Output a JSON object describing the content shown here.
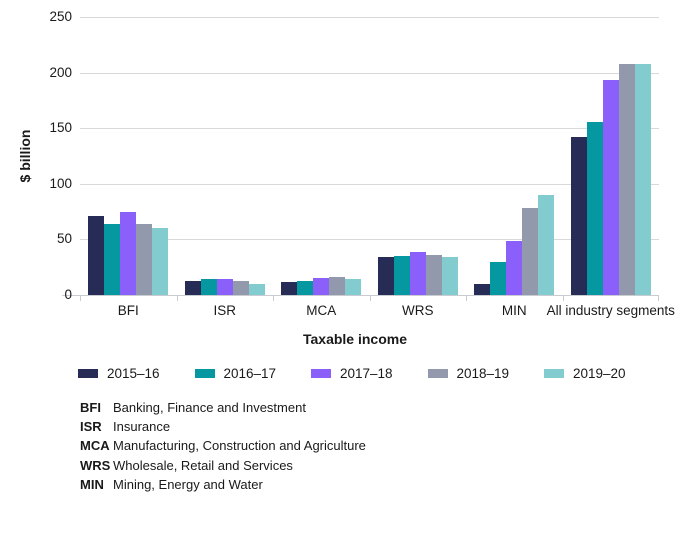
{
  "chart_data": {
    "type": "bar",
    "title": "",
    "ylabel": "$ billion",
    "xlabel": "Taxable income",
    "ylim": [
      0,
      250
    ],
    "yticks": [
      0,
      50,
      100,
      150,
      200,
      250
    ],
    "grid": true,
    "legend_position": "bottom",
    "categories": [
      "BFI",
      "ISR",
      "MCA",
      "WRS",
      "MIN",
      "All industry segments"
    ],
    "series": [
      {
        "name": "2015–16",
        "color": "#262C55",
        "values": [
          71,
          13,
          12,
          34,
          10,
          142
        ]
      },
      {
        "name": "2016–17",
        "color": "#0598A1",
        "values": [
          64,
          14,
          13,
          35,
          30,
          156
        ]
      },
      {
        "name": "2017–18",
        "color": "#8A5FFA",
        "values": [
          75,
          14,
          15,
          39,
          49,
          193
        ]
      },
      {
        "name": "2018–19",
        "color": "#9399AC",
        "values": [
          64,
          13,
          16,
          36,
          78,
          208
        ]
      },
      {
        "name": "2019–20",
        "color": "#82CCCF",
        "values": [
          60,
          10,
          14,
          34,
          90,
          208
        ]
      }
    ],
    "axis_color": "#c9cdd1",
    "gridline_color": "#d9d9d9"
  },
  "footnotes": [
    {
      "abbr": "BFI",
      "definition": "Banking, Finance and Investment"
    },
    {
      "abbr": "ISR",
      "definition": "Insurance"
    },
    {
      "abbr": "MCA",
      "definition": "Manufacturing, Construction and Agriculture"
    },
    {
      "abbr": "WRS",
      "definition": "Wholesale, Retail and Services"
    },
    {
      "abbr": "MIN",
      "definition": "Mining, Energy and Water"
    }
  ]
}
